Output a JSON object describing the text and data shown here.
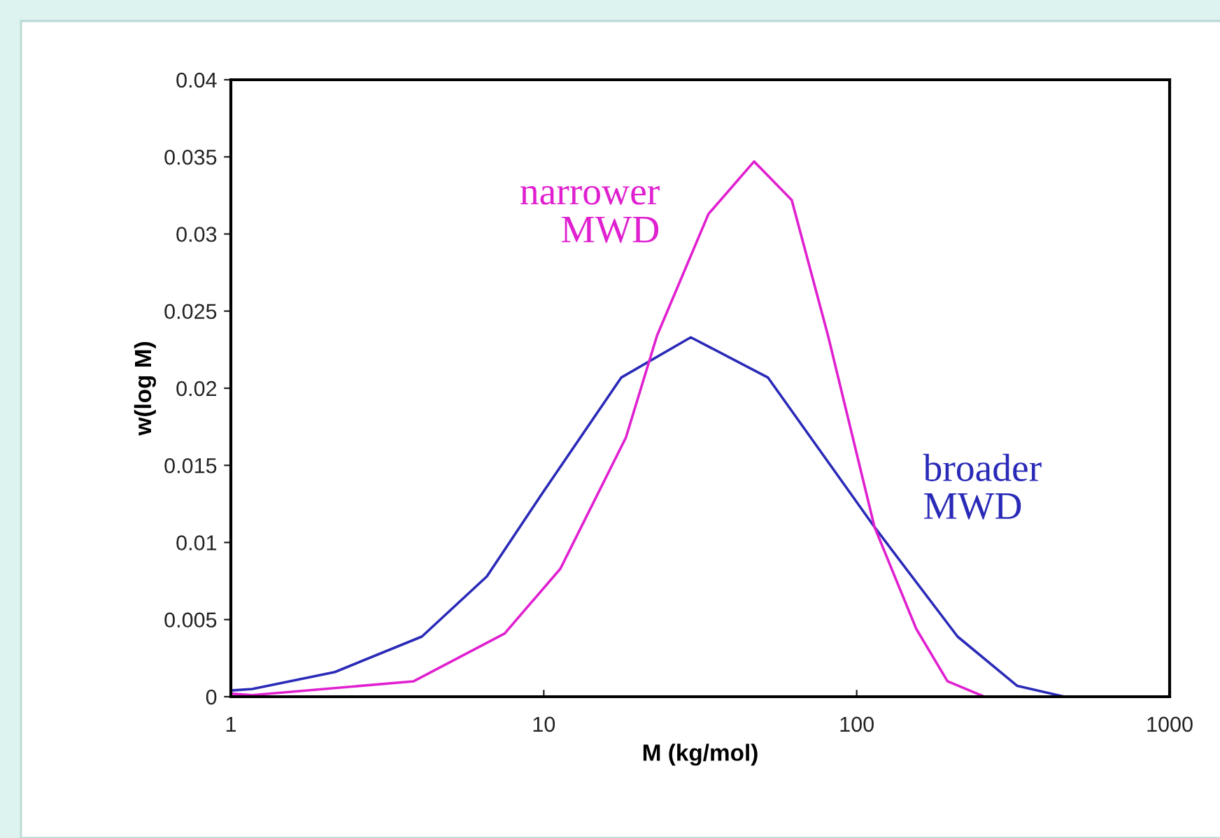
{
  "chart_data": {
    "type": "line",
    "xlabel": "M (kg/mol)",
    "ylabel": "w(log M)",
    "log": "x",
    "xlim": [
      1,
      1000
    ],
    "xticks": [
      1,
      10,
      100,
      1000
    ],
    "ylim": [
      0,
      0.04
    ],
    "yticks": [
      0,
      0.005,
      0.01,
      0.015,
      0.02,
      0.025,
      0.03,
      0.035,
      0.04
    ],
    "grid": false,
    "marker": "none",
    "line_style": "solid",
    "series": [
      {
        "name": "broader\nMWD",
        "color": "#2a2ab8",
        "x": [
          1.0,
          1.17,
          2.15,
          4.08,
          6.58,
          9.9,
          17.7,
          29.5,
          52,
          114,
          210,
          326,
          462
        ],
        "values": [
          0.0004,
          0.0005,
          0.0016,
          0.0039,
          0.0078,
          0.0132,
          0.0207,
          0.0233,
          0.0207,
          0.011,
          0.0039,
          0.0007,
          0.0
        ]
      },
      {
        "name": "narrower\nMWD",
        "color": "#e020d0",
        "x": [
          1.0,
          1.17,
          3.84,
          7.5,
          11.3,
          18.3,
          23,
          33.6,
          47,
          62,
          81,
          114,
          155,
          195,
          256
        ],
        "values": [
          0.0002,
          0.0001,
          0.001,
          0.0041,
          0.0083,
          0.0168,
          0.0234,
          0.0313,
          0.0347,
          0.0322,
          0.0234,
          0.011,
          0.0044,
          0.001,
          0.0
        ]
      }
    ]
  }
}
